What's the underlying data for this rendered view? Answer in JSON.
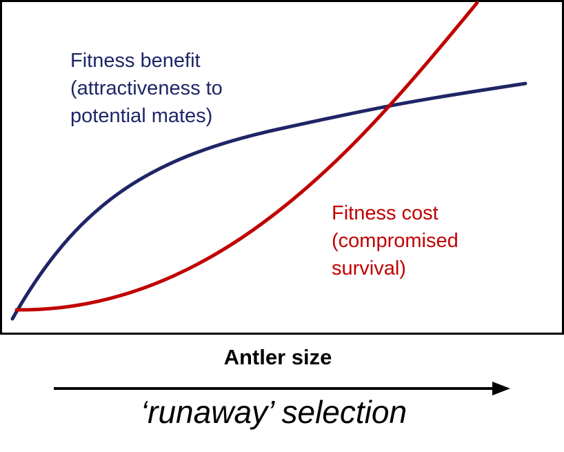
{
  "diagram": {
    "colors": {
      "benefit": "#1f2566",
      "cost": "#c00000",
      "frame": "#000000"
    },
    "benefit_curve": {
      "name": "Fitness benefit",
      "label_lines": [
        "Fitness benefit",
        "(attractiveness to",
        "potential mates)"
      ]
    },
    "cost_curve": {
      "name": "Fitness cost",
      "label_lines": [
        "Fitness cost",
        "(compromised",
        "survival)"
      ]
    },
    "x_axis": {
      "title": "Antler size"
    },
    "arrow_caption": "‘runaway’ selection"
  }
}
